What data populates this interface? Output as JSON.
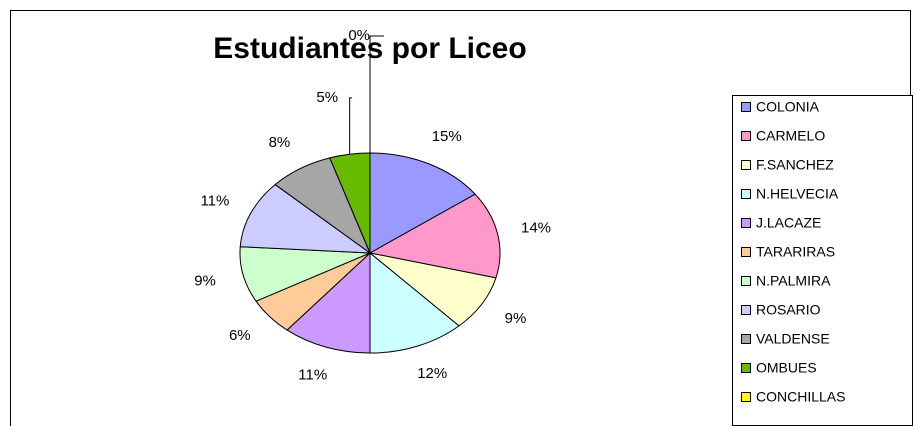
{
  "chart_data": {
    "type": "pie",
    "title": "Estudiantes por Liceo",
    "categories": [
      "COLONIA",
      "CARMELO",
      "F.SANCHEZ",
      "N.HELVECIA",
      "J.LACAZE",
      "TARARIRAS",
      "N.PALMIRA",
      "ROSARIO",
      "VALDENSE",
      "OMBUES",
      "CONCHILLAS"
    ],
    "values": [
      15,
      14,
      9,
      12,
      11,
      6,
      9,
      11,
      8,
      5,
      0
    ],
    "value_labels": [
      "15%",
      "14%",
      "9%",
      "12%",
      "11%",
      "6%",
      "9%",
      "11%",
      "8%",
      "5%",
      "0%"
    ],
    "colors": [
      "#9999ff",
      "#ff99cc",
      "#ffffcc",
      "#ccffff",
      "#cc99ff",
      "#ffcc99",
      "#ccffcc",
      "#ccccff",
      "#a6a6a6",
      "#66bb00",
      "#ffff00"
    ],
    "legend": "right"
  }
}
